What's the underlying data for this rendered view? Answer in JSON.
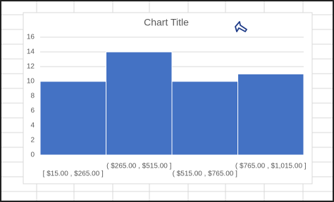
{
  "chart_data": {
    "type": "bar",
    "title": "Chart Title",
    "categories": [
      "[ $15.00 , $265.00 ]",
      "( $265.00 , $515.00 ]",
      "( $515.00 , $765.00 ]",
      "( $765.00 , $1,015.00 ]"
    ],
    "values": [
      10,
      14,
      10,
      11
    ],
    "color": "#4472c4",
    "ylim": [
      0,
      16
    ],
    "yticks": [
      0,
      2,
      4,
      6,
      8,
      10,
      12,
      14,
      16
    ],
    "grid": true
  }
}
